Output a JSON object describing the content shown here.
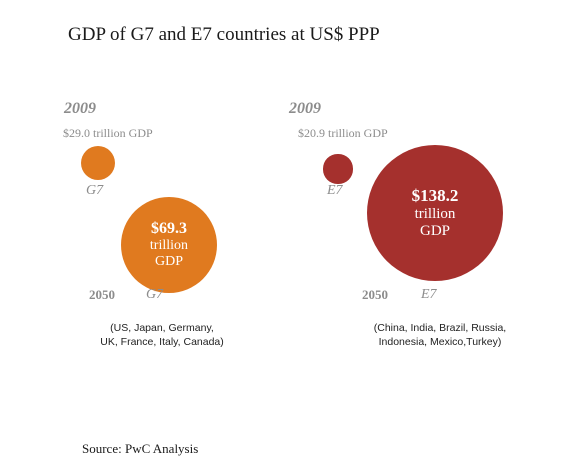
{
  "chart_data": {
    "type": "bubble",
    "title": "GDP of G7 and E7 countries at US$ PPP",
    "source": "Source: PwC Analysis",
    "groups": [
      {
        "name": "G7",
        "color": "#e07a1f",
        "members": [
          "(US, Japan, Germany,",
          "UK, France, Italy, Canada)"
        ],
        "points": [
          {
            "year": "2009",
            "value": 29.0,
            "label": "$29.0 trillion GDP"
          },
          {
            "year": "2050",
            "value": 69.3,
            "label_lines": [
              "$69.3",
              "trillion",
              "GDP"
            ]
          }
        ]
      },
      {
        "name": "E7",
        "color": "#a5302d",
        "members": [
          "(China, India, Brazil, Russia,",
          "Indonesia, Mexico,Turkey)"
        ],
        "points": [
          {
            "year": "2009",
            "value": 20.9,
            "label": "$20.9 trillion GDP"
          },
          {
            "year": "2050",
            "value": 138.2,
            "label_lines": [
              "$138.2",
              "trillion",
              "GDP"
            ]
          }
        ]
      }
    ],
    "units": "US$ trillion (PPP)"
  }
}
